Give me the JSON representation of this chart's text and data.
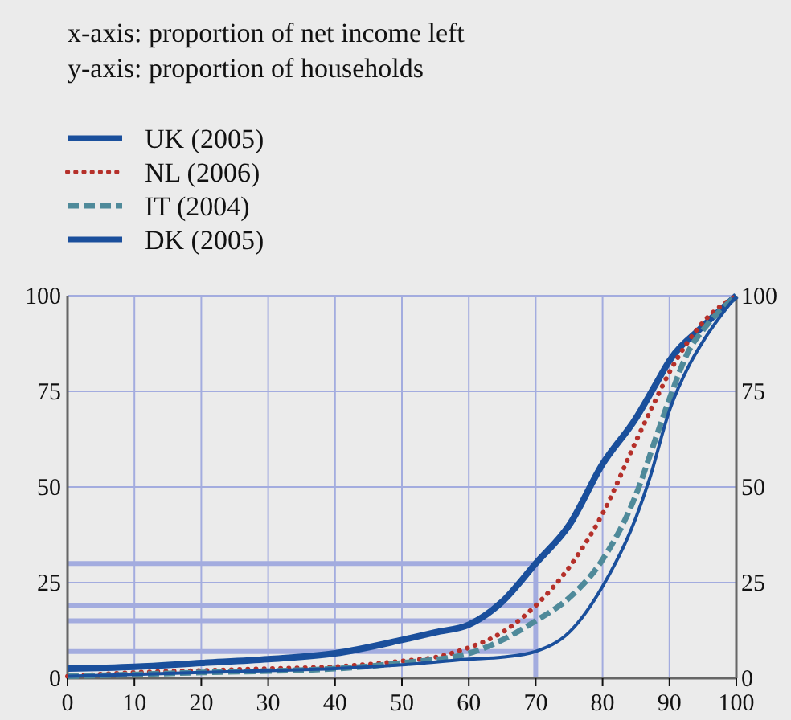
{
  "chart_data": {
    "type": "line",
    "annotations": [
      "x-axis: proportion of net income left",
      "y-axis: proportion of households"
    ],
    "series": [
      {
        "name": "UK (2005)",
        "color": "#1a4f9c",
        "line_style": "solid",
        "x": [
          0,
          10,
          20,
          30,
          40,
          50,
          55,
          60,
          65,
          70,
          75,
          80,
          85,
          88,
          90,
          95,
          100
        ],
        "values": [
          2.5,
          3,
          4,
          5,
          6.5,
          10,
          12,
          14,
          20,
          30,
          40,
          56,
          68,
          77,
          83,
          92,
          100
        ]
      },
      {
        "name": "NL (2006)",
        "color": "#b5302a",
        "line_style": "dotted",
        "x": [
          0,
          10,
          20,
          30,
          40,
          50,
          55,
          60,
          65,
          70,
          75,
          80,
          85,
          88,
          90,
          95,
          100
        ],
        "values": [
          0.5,
          1.5,
          2,
          2.5,
          3,
          4.5,
          5.5,
          8,
          12,
          19,
          29,
          43,
          62,
          73,
          80,
          93,
          100
        ]
      },
      {
        "name": "IT (2004)",
        "color": "#4f8a9a",
        "line_style": "dashed",
        "x": [
          0,
          20,
          40,
          50,
          60,
          65,
          70,
          75,
          80,
          85,
          88,
          90,
          93,
          95,
          100
        ],
        "values": [
          0.5,
          1.5,
          2.5,
          4,
          6.5,
          10,
          15,
          21,
          31,
          48,
          63,
          73,
          86,
          91,
          100
        ]
      },
      {
        "name": "DK (2005)",
        "color": "#1a4f9c",
        "line_style": "solid",
        "x": [
          0,
          10,
          20,
          30,
          40,
          50,
          60,
          65,
          70,
          75,
          80,
          85,
          87,
          90,
          93,
          95,
          100
        ],
        "values": [
          0.5,
          1,
          1.5,
          2,
          2.5,
          3.5,
          5,
          5.5,
          7,
          12,
          24,
          42,
          52,
          70,
          82,
          88,
          100
        ]
      }
    ],
    "xlim": [
      0,
      100
    ],
    "xticks": [
      0,
      10,
      20,
      30,
      40,
      50,
      60,
      70,
      80,
      90,
      100
    ],
    "ylim": [
      0,
      100
    ],
    "yticks": [
      0,
      25,
      50,
      75,
      100
    ],
    "y2lim": [
      0,
      100
    ],
    "y2ticks": [
      0,
      25,
      50,
      75,
      100
    ],
    "ref_lines": [
      {
        "axis": "y",
        "value": 30,
        "color": "#a3acdf"
      },
      {
        "axis": "y",
        "value": 19,
        "color": "#a3acdf"
      },
      {
        "axis": "y",
        "value": 15,
        "color": "#a3acdf"
      },
      {
        "axis": "y",
        "value": 7,
        "color": "#a3acdf"
      },
      {
        "axis": "x",
        "value": 70,
        "color": "#a3acdf"
      }
    ],
    "grid": true,
    "legend": "top left"
  }
}
